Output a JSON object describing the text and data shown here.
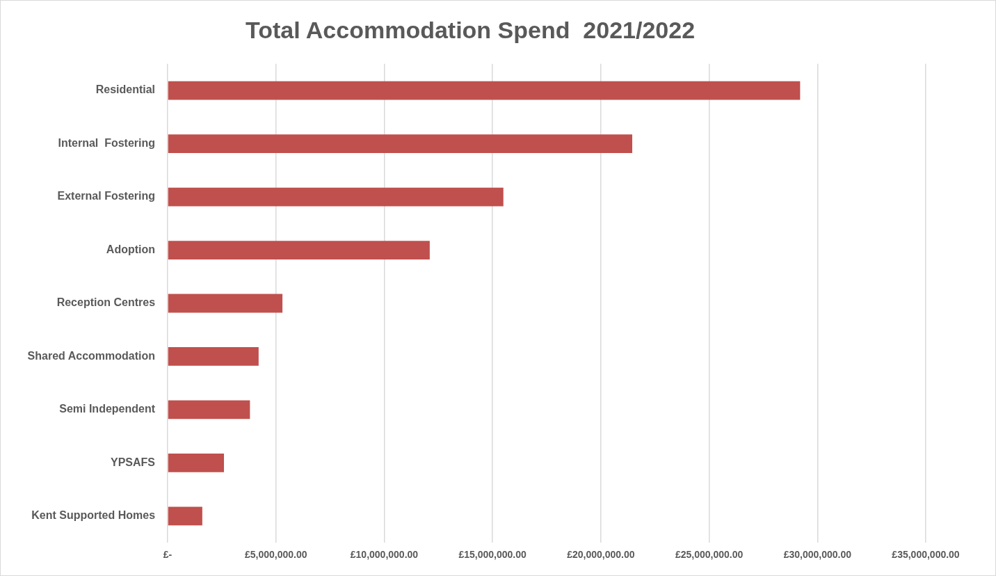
{
  "chart_data": {
    "type": "bar",
    "orientation": "horizontal",
    "title": "Total Accommodation Spend  2021/2022",
    "categories": [
      "Residential",
      "Internal  Fostering",
      "External Fostering",
      "Adoption",
      "Reception Centres",
      "Shared Accommodation",
      "Semi Independent",
      "YPSAFS",
      "Kent Supported Homes"
    ],
    "values": [
      29200000,
      21450000,
      15500000,
      12100000,
      5300000,
      4200000,
      3800000,
      2600000,
      1600000
    ],
    "color": "#c0504d",
    "xlim": [
      0,
      35000000
    ],
    "xticks": [
      {
        "value": 0,
        "label": "£-"
      },
      {
        "value": 5000000,
        "label": "£5,000,000.00"
      },
      {
        "value": 10000000,
        "label": "£10,000,000.00"
      },
      {
        "value": 15000000,
        "label": "£15,000,000.00"
      },
      {
        "value": 20000000,
        "label": "£20,000,000.00"
      },
      {
        "value": 25000000,
        "label": "£25,000,000.00"
      },
      {
        "value": 30000000,
        "label": "£30,000,000.00"
      },
      {
        "value": 35000000,
        "label": "£35,000,000.00"
      }
    ],
    "grid": "x",
    "legend": false
  }
}
